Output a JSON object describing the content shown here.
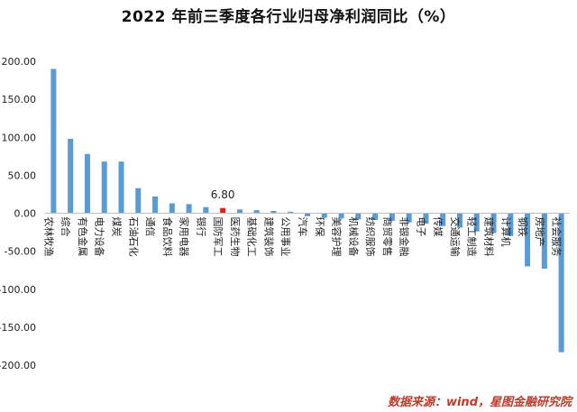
{
  "chart_data": {
    "type": "bar",
    "title": "2022 年前三季度各行业归母净利润同比（%）",
    "source": "数据来源：wind，星图金融研究院",
    "ylim": [
      -200,
      200
    ],
    "yticks": [
      "200.00",
      "150.00",
      "100.00",
      "50.00",
      "0.00",
      "-50.00",
      "-100.00",
      "-150.00",
      "-200.00"
    ],
    "grid": false,
    "legend": "none",
    "categories": [
      "农林牧渔",
      "综合",
      "有色金属",
      "电力设备",
      "煤炭",
      "石油石化",
      "通信",
      "食品饮料",
      "家用电器",
      "银行",
      "国防军工",
      "医药生物",
      "基础化工",
      "建筑装饰",
      "公用事业",
      "汽车",
      "环保",
      "美容护理",
      "机械设备",
      "纺织服饰",
      "商贸零售",
      "非银金融",
      "电子",
      "传媒",
      "交通运输",
      "轻工制造",
      "建筑材料",
      "计算机",
      "钢铁",
      "房地产",
      "社会服务"
    ],
    "values": [
      190,
      98,
      78,
      68,
      68,
      33,
      22,
      13,
      12,
      8,
      6.8,
      5,
      4,
      3,
      2,
      -4,
      -6,
      -7,
      -8,
      -9,
      -10,
      -12,
      -14,
      -17,
      -19,
      -24,
      -26,
      -30,
      -70,
      -73,
      -183
    ],
    "highlight_index": 10,
    "highlight_label": "6.80",
    "colors": {
      "bar": "#5b9bd5",
      "highlight": "#e32119",
      "axis": "#bfbfbf",
      "text": "#222222"
    }
  }
}
